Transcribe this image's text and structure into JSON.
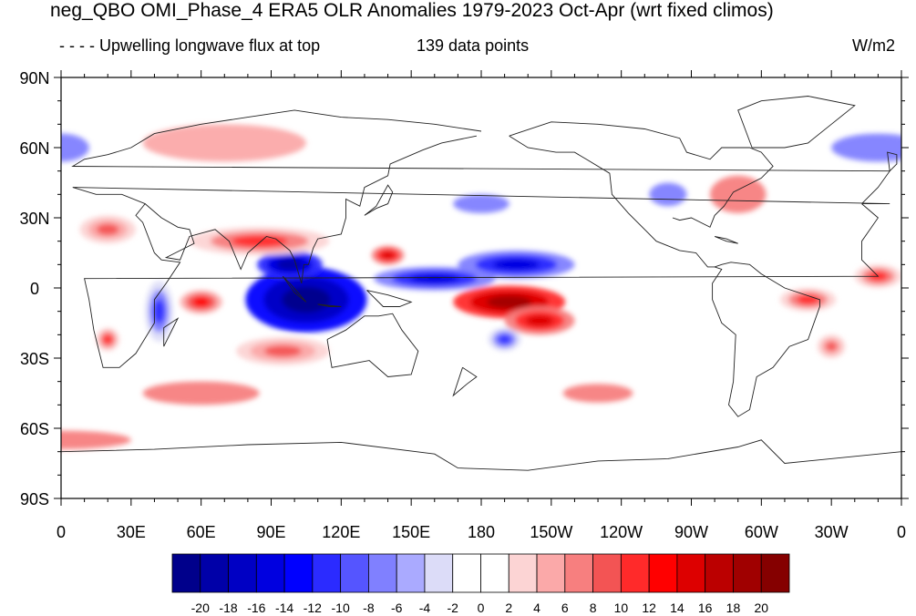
{
  "title": "neg_QBO OMI_Phase_4 ERA5 OLR Anomalies 1979-2023 Oct-Apr (wrt fixed climos)",
  "subtitle_left": "- - - - Upwelling longwave flux at top",
  "subtitle_center": "139 data points",
  "units": "W/m2",
  "lat_ticks": [
    "90N",
    "60N",
    "30N",
    "0",
    "30S",
    "60S",
    "90S"
  ],
  "lon_ticks": [
    "0",
    "30E",
    "60E",
    "90E",
    "120E",
    "150E",
    "180",
    "150W",
    "120W",
    "90W",
    "60W",
    "30W",
    "0"
  ],
  "colorbar": {
    "labels": [
      "-20",
      "-18",
      "-16",
      "-14",
      "-12",
      "-10",
      "-8",
      "-6",
      "-4",
      "-2",
      "0",
      "2",
      "4",
      "6",
      "8",
      "10",
      "12",
      "14",
      "16",
      "18",
      "20"
    ],
    "colors": [
      "#00008b",
      "#0000a8",
      "#0000c4",
      "#0000e0",
      "#0000ff",
      "#2b2bff",
      "#5555ff",
      "#8080ff",
      "#aaaaff",
      "#dcdcf8",
      "#ffffff",
      "#ffffff",
      "#fcd4d4",
      "#fba9a9",
      "#f77f7f",
      "#f35454",
      "#ff2a2a",
      "#ff0000",
      "#dd0000",
      "#bb0000",
      "#a00000",
      "#850000"
    ]
  },
  "anomaly_features": [
    {
      "kind": "neg",
      "level": 9,
      "lon": 105,
      "lat": -5,
      "rlon": 26,
      "rlat": 14
    },
    {
      "kind": "neg",
      "level": 8,
      "lon": 98,
      "lat": 10,
      "rlon": 14,
      "rlat": 6
    },
    {
      "kind": "neg",
      "level": 6,
      "lon": 160,
      "lat": 4,
      "rlon": 26,
      "rlat": 5
    },
    {
      "kind": "neg",
      "level": 6,
      "lon": 195,
      "lat": 10,
      "rlon": 25,
      "rlat": 6
    },
    {
      "kind": "neg",
      "level": 4,
      "lon": 42,
      "lat": -10,
      "rlon": 6,
      "rlat": 13
    },
    {
      "kind": "neg",
      "level": 4,
      "lon": 190,
      "lat": -22,
      "rlon": 7,
      "rlat": 5
    },
    {
      "kind": "pos",
      "level": 8,
      "lon": 192,
      "lat": -6,
      "rlon": 24,
      "rlat": 7
    },
    {
      "kind": "pos",
      "level": 6,
      "lon": 205,
      "lat": -14,
      "rlon": 15,
      "rlat": 6
    },
    {
      "kind": "pos",
      "level": 6,
      "lon": 140,
      "lat": 14,
      "rlon": 7,
      "rlat": 4
    },
    {
      "kind": "pos",
      "level": 5,
      "lon": 60,
      "lat": -6,
      "rlon": 9,
      "rlat": 5
    },
    {
      "kind": "pos",
      "level": 4,
      "lon": 20,
      "lat": -22,
      "rlon": 5,
      "rlat": 5
    },
    {
      "kind": "pos",
      "level": 4,
      "lon": 85,
      "lat": 20,
      "rlon": 30,
      "rlat": 6
    },
    {
      "kind": "pos",
      "level": 4,
      "lon": 320,
      "lat": -5,
      "rlon": 12,
      "rlat": 5
    },
    {
      "kind": "pos",
      "level": 4,
      "lon": 350,
      "lat": 5,
      "rlon": 10,
      "rlat": 5
    },
    {
      "kind": "pos",
      "level": 3,
      "lon": 20,
      "lat": 25,
      "rlon": 12,
      "rlat": 6
    },
    {
      "kind": "pos",
      "level": 3,
      "lon": 330,
      "lat": -25,
      "rlon": 6,
      "rlat": 5
    },
    {
      "kind": "pos",
      "level": 3,
      "lon": 95,
      "lat": -27,
      "rlon": 20,
      "rlat": 6
    },
    {
      "kind": "pos",
      "level": 2,
      "lon": 290,
      "lat": 40,
      "rlon": 12,
      "rlat": 8
    },
    {
      "kind": "neg",
      "level": 2,
      "lon": 0,
      "lat": 60,
      "rlon": 12,
      "rlat": 6
    },
    {
      "kind": "neg",
      "level": 2,
      "lon": 350,
      "lat": 60,
      "rlon": 20,
      "rlat": 6
    },
    {
      "kind": "pos",
      "level": 2,
      "lon": 0,
      "lat": -65,
      "rlon": 30,
      "rlat": 4
    },
    {
      "kind": "pos",
      "level": 1,
      "lon": 70,
      "lat": 62,
      "rlon": 35,
      "rlat": 8
    },
    {
      "kind": "pos",
      "level": 2,
      "lon": 60,
      "lat": -45,
      "rlon": 25,
      "rlat": 5
    },
    {
      "kind": "neg",
      "level": 2,
      "lon": 180,
      "lat": 36,
      "rlon": 12,
      "rlat": 4
    },
    {
      "kind": "neg",
      "level": 2,
      "lon": 260,
      "lat": 40,
      "rlon": 8,
      "rlat": 5
    },
    {
      "kind": "pos",
      "level": 2,
      "lon": 230,
      "lat": -45,
      "rlon": 15,
      "rlat": 4
    }
  ]
}
